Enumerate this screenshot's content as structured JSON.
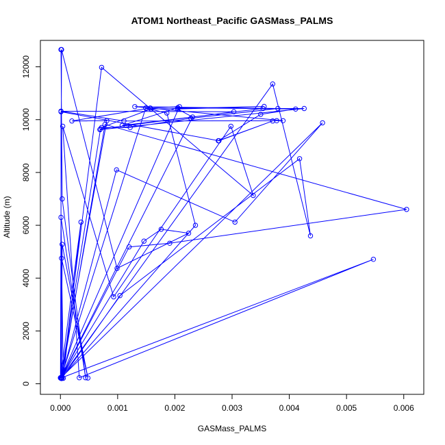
{
  "chart_data": {
    "type": "line",
    "title": "ATOM1 Northeast_Pacific GASMass_PALMS",
    "xlabel": "GASMass_PALMS",
    "ylabel": "Altitude (m)",
    "xlim": [
      -0.00035,
      0.00635
    ],
    "ylim": [
      -400,
      13000
    ],
    "x_ticks": [
      0.0,
      0.001,
      0.002,
      0.003,
      0.004,
      0.005,
      0.006
    ],
    "x_tick_labels": [
      "0.000",
      "0.001",
      "0.002",
      "0.003",
      "0.004",
      "0.005",
      "0.006"
    ],
    "y_ticks": [
      0,
      2000,
      4000,
      6000,
      8000,
      10000,
      12000
    ],
    "y_tick_labels": [
      "0",
      "2000",
      "4000",
      "6000",
      "8000",
      "10000",
      "12000"
    ],
    "series": [
      {
        "color": "#0000ff",
        "marker": "open-circle",
        "x": [
          1e-05,
          3e-05,
          0.00044,
          1e-05,
          5e-05,
          0.00036,
          0.0,
          2e-05,
          0.00048,
          3e-05,
          2e-05,
          0.0,
          2e-05,
          0.00099,
          0.00224,
          0.00176,
          0.00146,
          1e-05,
          0.00547,
          0.00033,
          4e-05,
          0.00093,
          0.00298,
          0.00337,
          0.00072,
          3e-05,
          0.00104,
          0.00418,
          0.00437,
          0.00371,
          1e-05,
          0.00149,
          0.00186,
          0.00236,
          1e-05,
          0.0012,
          0.00191,
          0.00605,
          0.00078,
          2e-05,
          0.00098,
          0.00305,
          0.00458,
          1e-05,
          0.00081,
          0.0002,
          0.00157,
          0.00208,
          1e-05,
          0.0007,
          0.00303,
          1e-05,
          0.00111,
          0.00378,
          0.00389,
          0.0013,
          0.0038,
          0.00228,
          0.00122,
          0.00072,
          0.00158,
          0.00356,
          0.00205,
          0.00231,
          1e-05,
          1e-05,
          0.00277,
          0.00371,
          0.00276,
          0.0035,
          0.00411,
          0.00205,
          0.00108,
          0.00354,
          0.00426,
          0.00069
        ],
        "y": [
          12650,
          7000,
          230,
          6300,
          210,
          6120,
          220,
          4750,
          220,
          5280,
          200,
          230,
          12650,
          4370,
          5700,
          5850,
          5400,
          220,
          4710,
          230,
          9750,
          3290,
          9750,
          7130,
          11980,
          220,
          3340,
          8520,
          5600,
          11350,
          220,
          10440,
          10250,
          6000,
          210,
          5180,
          5320,
          6600,
          9820,
          220,
          8100,
          6120,
          9880,
          230,
          9960,
          9950,
          10440,
          10490,
          230,
          9650,
          10300,
          10320,
          9950,
          9960,
          9960,
          10490,
          10420,
          10050,
          9700,
          9700,
          10400,
          10500,
          10400,
          10100,
          220,
          10300,
          9200,
          9950,
          9200,
          10200,
          10400,
          10450,
          9780,
          10420,
          10420,
          9620
        ]
      }
    ]
  }
}
